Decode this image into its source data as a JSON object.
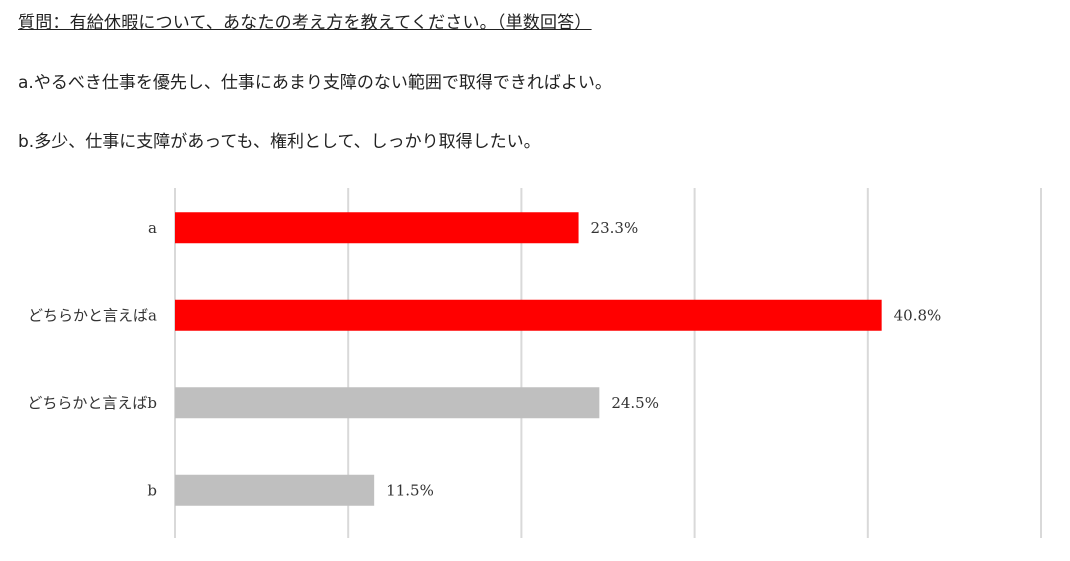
{
  "question": {
    "title": "質問：有給休暇について、あなたの考え方を教えてください。（単数回答）",
    "option_a": "a.やるべき仕事を優先し、仕事にあまり支障のない範囲で取得できればよい。",
    "option_b": "b.多少、仕事に支障があっても、権利として、しっかり取得したい。"
  },
  "chart_data": {
    "type": "bar",
    "orientation": "horizontal",
    "categories": [
      "a",
      "どちらかと言えばa",
      "どちらかと言えばb",
      "b"
    ],
    "values": [
      23.3,
      40.8,
      24.5,
      11.5
    ],
    "value_labels": [
      "23.3%",
      "40.8%",
      "24.5%",
      "11.5%"
    ],
    "bar_colors": [
      "#ff0000",
      "#ff0000",
      "#bfbfbf",
      "#bfbfbf"
    ],
    "xlim": [
      0,
      50
    ],
    "grid": true,
    "gridline_step": 10,
    "gridline_color": "#d9d9d9"
  }
}
